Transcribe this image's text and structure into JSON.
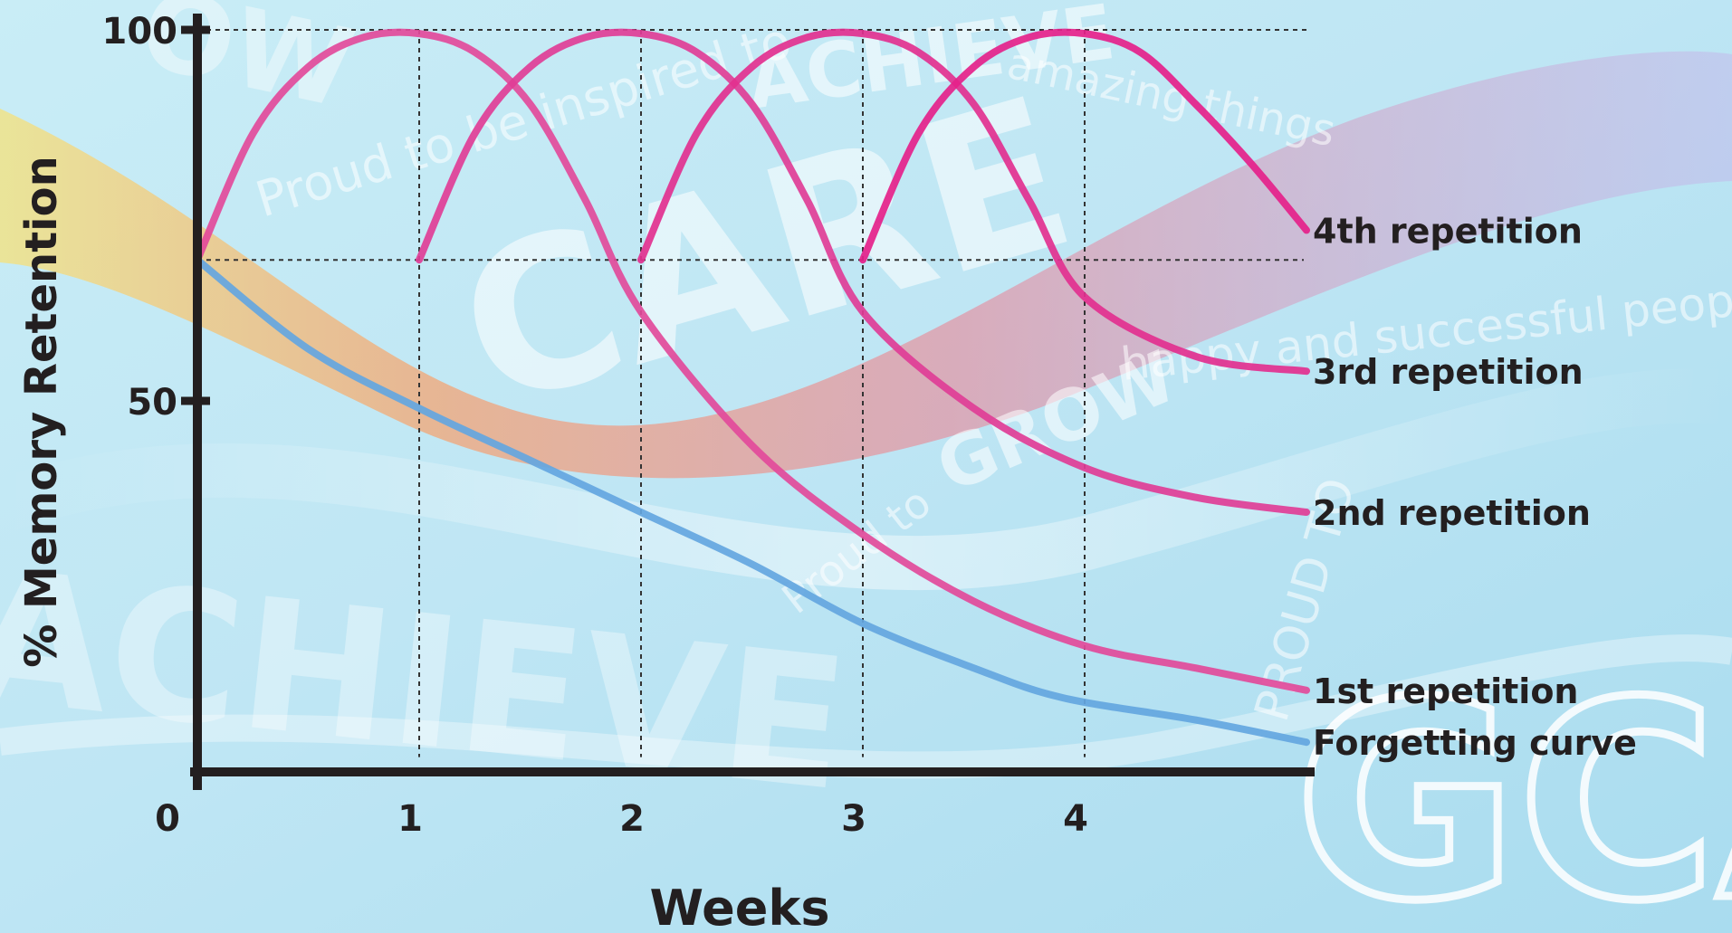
{
  "background": {
    "slogans": [
      "Proud to be inspired to",
      "ACHIEVE",
      "amazing things",
      "CARE",
      "Proud to",
      "GROW",
      "happy and successful people",
      "ACHIEVE",
      "PROUD TO",
      "GCA",
      "OW"
    ]
  },
  "chart_data": {
    "type": "line",
    "title": "",
    "xlabel": "Weeks",
    "ylabel": "% Memory Retention",
    "x_ticks": [
      "0",
      "1",
      "2",
      "3",
      "4"
    ],
    "y_ticks": [
      "50",
      "100"
    ],
    "xlim": [
      0,
      5
    ],
    "ylim": [
      0,
      100
    ],
    "grid": "dashed reference lines at weeks 1-4 and retention 100 and 69",
    "series": [
      {
        "name": "Forgetting curve",
        "color": "#64a6e0",
        "x": [
          0,
          0.5,
          1,
          1.5,
          2,
          2.5,
          3,
          3.5,
          3.9,
          4.5,
          5
        ],
        "y": [
          69,
          57,
          49,
          42,
          35,
          28,
          20,
          14,
          10,
          7,
          4
        ]
      },
      {
        "name": "1st repetition",
        "color": "#e24a9a",
        "x": [
          0,
          0.25,
          0.5,
          0.75,
          1,
          1.25,
          1.5,
          1.75,
          2,
          2.5,
          3,
          3.5,
          4,
          4.5,
          5
        ],
        "y": [
          69,
          86,
          95,
          99,
          99.5,
          97,
          90,
          77,
          62,
          44,
          32,
          23,
          17,
          14,
          11
        ]
      },
      {
        "name": "2nd repetition",
        "color": "#e03d96",
        "x": [
          1,
          1.25,
          1.5,
          1.75,
          2,
          2.25,
          2.5,
          2.75,
          3,
          3.5,
          4,
          4.5,
          5
        ],
        "y": [
          69,
          86,
          95,
          99,
          99.5,
          97,
          90,
          77,
          62,
          49,
          41,
          37,
          35
        ]
      },
      {
        "name": "3rd repetition",
        "color": "#e2308f",
        "x": [
          2,
          2.25,
          2.5,
          2.75,
          3,
          3.25,
          3.5,
          3.75,
          4,
          4.5,
          5
        ],
        "y": [
          69,
          86,
          95,
          99,
          99.5,
          97,
          90,
          77,
          64,
          56,
          54
        ]
      },
      {
        "name": "4th repetition",
        "color": "#e5218a",
        "x": [
          3,
          3.25,
          3.5,
          3.75,
          4,
          4.25,
          4.5,
          4.75,
          5
        ],
        "y": [
          69,
          86,
          95,
          99,
          99.5,
          97,
          90,
          82,
          73
        ]
      }
    ],
    "legend": "right-end labels"
  }
}
